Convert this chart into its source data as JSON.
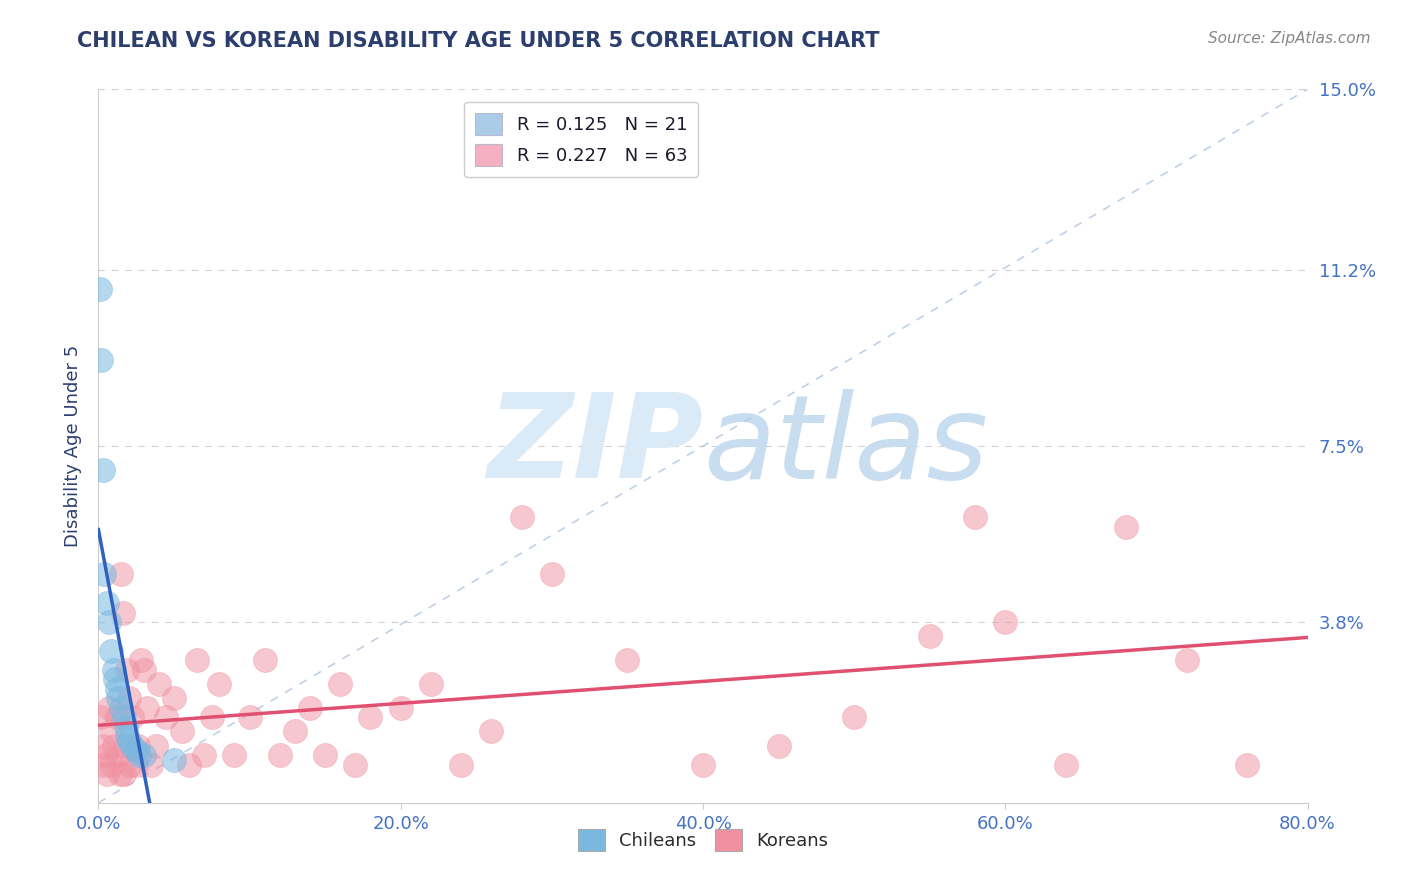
{
  "title": "CHILEAN VS KOREAN DISABILITY AGE UNDER 5 CORRELATION CHART",
  "source_text": "Source: ZipAtlas.com",
  "ylabel": "Disability Age Under 5",
  "xlabel": "",
  "xlim": [
    0.0,
    0.8
  ],
  "ylim": [
    0.0,
    0.15
  ],
  "yticks": [
    0.0,
    0.038,
    0.075,
    0.112,
    0.15
  ],
  "ytick_labels": [
    "",
    "3.8%",
    "7.5%",
    "11.2%",
    "15.0%"
  ],
  "xticks": [
    0.0,
    0.2,
    0.4,
    0.6,
    0.8
  ],
  "xtick_labels": [
    "0.0%",
    "20.0%",
    "40.0%",
    "60.0%",
    "80.0%"
  ],
  "legend_r_entries": [
    {
      "r_val": "0.125",
      "n_val": "21",
      "color": "#aacce8"
    },
    {
      "r_val": "0.227",
      "n_val": "63",
      "color": "#f4b0c0"
    }
  ],
  "chilean_color": "#7ab8e0",
  "korean_color": "#f090a0",
  "chilean_alpha": 0.55,
  "korean_alpha": 0.5,
  "chilean_line_color": "#3060c0",
  "korean_line_color": "#e05070",
  "ref_line_color": "#b8cce4",
  "watermark_color": "#daeaf6",
  "title_color": "#2c3e6e",
  "axis_label_color": "#2c3e6e",
  "tick_color": "#4472c4",
  "dot_size": 300,
  "chilean_points": [
    [
      0.001,
      0.108
    ],
    [
      0.002,
      0.093
    ],
    [
      0.003,
      0.07
    ],
    [
      0.004,
      0.048
    ],
    [
      0.006,
      0.042
    ],
    [
      0.007,
      0.038
    ],
    [
      0.008,
      0.032
    ],
    [
      0.01,
      0.028
    ],
    [
      0.011,
      0.026
    ],
    [
      0.012,
      0.024
    ],
    [
      0.013,
      0.022
    ],
    [
      0.015,
      0.02
    ],
    [
      0.017,
      0.018
    ],
    [
      0.018,
      0.016
    ],
    [
      0.019,
      0.014
    ],
    [
      0.02,
      0.013
    ],
    [
      0.022,
      0.012
    ],
    [
      0.025,
      0.011
    ],
    [
      0.027,
      0.01
    ],
    [
      0.03,
      0.01
    ],
    [
      0.05,
      0.009
    ]
  ],
  "korean_points": [
    [
      0.002,
      0.018
    ],
    [
      0.003,
      0.012
    ],
    [
      0.004,
      0.008
    ],
    [
      0.005,
      0.01
    ],
    [
      0.006,
      0.006
    ],
    [
      0.007,
      0.02
    ],
    [
      0.008,
      0.015
    ],
    [
      0.009,
      0.008
    ],
    [
      0.01,
      0.012
    ],
    [
      0.012,
      0.018
    ],
    [
      0.013,
      0.01
    ],
    [
      0.014,
      0.006
    ],
    [
      0.015,
      0.048
    ],
    [
      0.016,
      0.04
    ],
    [
      0.017,
      0.006
    ],
    [
      0.018,
      0.012
    ],
    [
      0.019,
      0.028
    ],
    [
      0.02,
      0.022
    ],
    [
      0.021,
      0.008
    ],
    [
      0.022,
      0.018
    ],
    [
      0.025,
      0.008
    ],
    [
      0.026,
      0.012
    ],
    [
      0.028,
      0.03
    ],
    [
      0.03,
      0.028
    ],
    [
      0.032,
      0.02
    ],
    [
      0.035,
      0.008
    ],
    [
      0.038,
      0.012
    ],
    [
      0.04,
      0.025
    ],
    [
      0.045,
      0.018
    ],
    [
      0.05,
      0.022
    ],
    [
      0.055,
      0.015
    ],
    [
      0.06,
      0.008
    ],
    [
      0.065,
      0.03
    ],
    [
      0.07,
      0.01
    ],
    [
      0.075,
      0.018
    ],
    [
      0.08,
      0.025
    ],
    [
      0.09,
      0.01
    ],
    [
      0.1,
      0.018
    ],
    [
      0.11,
      0.03
    ],
    [
      0.12,
      0.01
    ],
    [
      0.13,
      0.015
    ],
    [
      0.14,
      0.02
    ],
    [
      0.15,
      0.01
    ],
    [
      0.16,
      0.025
    ],
    [
      0.17,
      0.008
    ],
    [
      0.18,
      0.018
    ],
    [
      0.2,
      0.02
    ],
    [
      0.22,
      0.025
    ],
    [
      0.24,
      0.008
    ],
    [
      0.26,
      0.015
    ],
    [
      0.28,
      0.06
    ],
    [
      0.3,
      0.048
    ],
    [
      0.35,
      0.03
    ],
    [
      0.4,
      0.008
    ],
    [
      0.45,
      0.012
    ],
    [
      0.5,
      0.018
    ],
    [
      0.55,
      0.035
    ],
    [
      0.58,
      0.06
    ],
    [
      0.6,
      0.038
    ],
    [
      0.64,
      0.008
    ],
    [
      0.68,
      0.058
    ],
    [
      0.72,
      0.03
    ],
    [
      0.76,
      0.008
    ]
  ],
  "chilean_line": {
    "x0": 0.0,
    "x1": 0.035,
    "slope_sign": -1
  },
  "korean_line": {
    "x0": 0.0,
    "x1": 0.8
  }
}
